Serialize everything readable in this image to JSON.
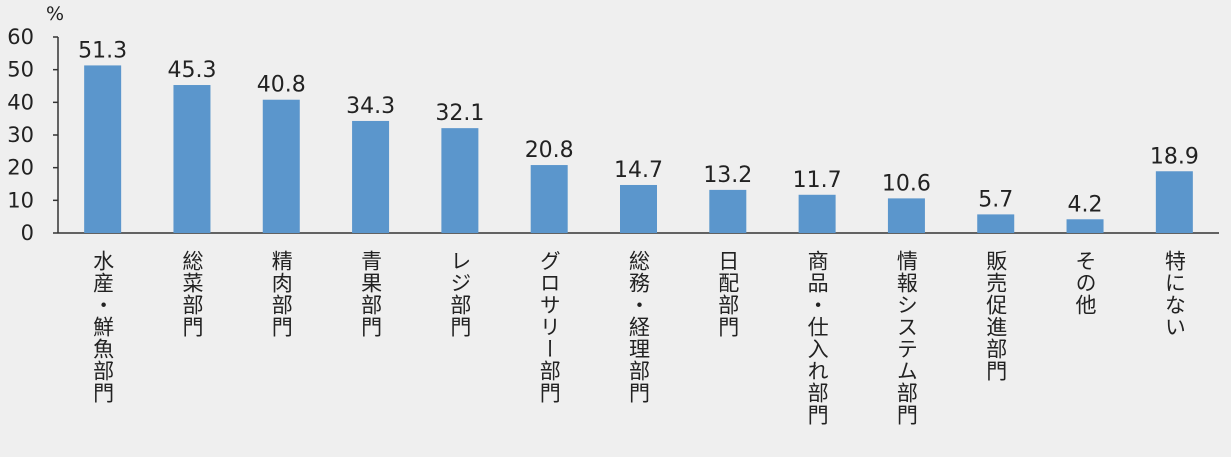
{
  "chart_data": {
    "type": "bar",
    "unit_label": "%",
    "categories": [
      "水産・鮮魚部門",
      "総菜部門",
      "精肉部門",
      "青果部門",
      "レジ部門",
      "グロサリー部門",
      "総務・経理部門",
      "日配部門",
      "商品・仕入れ部門",
      "情報システム部門",
      "販売促進部門",
      "その他",
      "特にない"
    ],
    "values": [
      51.3,
      45.3,
      40.8,
      34.3,
      32.1,
      20.8,
      14.7,
      13.2,
      11.7,
      10.6,
      5.7,
      4.2,
      18.9
    ],
    "data_labels": [
      "51.3",
      "45.3",
      "40.8",
      "34.3",
      "32.1",
      "20.8",
      "14.7",
      "13.2",
      "11.7",
      "10.6",
      "5.7",
      "4.2",
      "18.9"
    ],
    "yticks": [
      "0",
      "10",
      "20",
      "30",
      "40",
      "50",
      "60"
    ],
    "ylim": [
      0,
      60
    ],
    "bar_color": "#5b96cc",
    "grid": false
  }
}
